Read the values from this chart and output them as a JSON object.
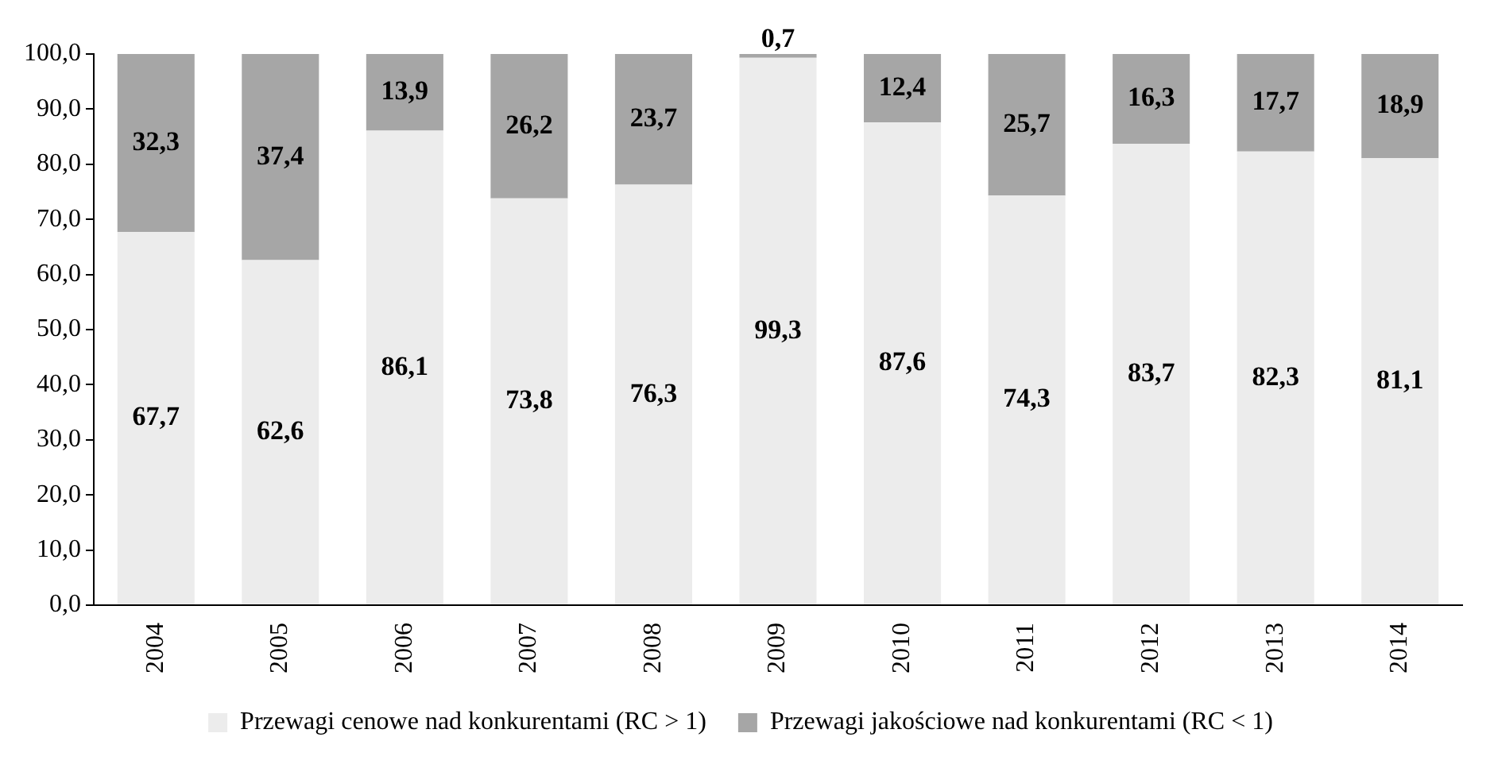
{
  "chart_data": {
    "type": "bar",
    "stacked": true,
    "categories": [
      "2004",
      "2005",
      "2006",
      "2007",
      "2008",
      "2009",
      "2010",
      "2011",
      "2012",
      "2013",
      "2014"
    ],
    "series": [
      {
        "name": "Przewagi cenowe nad konkurentami (RC > 1)",
        "color": "#ececec",
        "values": [
          67.7,
          62.6,
          86.1,
          73.8,
          76.3,
          99.3,
          87.6,
          74.3,
          83.7,
          82.3,
          81.1
        ],
        "value_labels": [
          "67,7",
          "62,6",
          "86,1",
          "73,8",
          "76,3",
          "99,3",
          "87,6",
          "74,3",
          "83,7",
          "82,3",
          "81,1"
        ]
      },
      {
        "name": "Przewagi jakościowe nad konkurentami (RC < 1)",
        "color": "#a6a6a6",
        "values": [
          32.3,
          37.4,
          13.9,
          26.2,
          23.7,
          0.7,
          12.4,
          25.7,
          16.3,
          17.7,
          18.9
        ],
        "value_labels": [
          "32,3",
          "37,4",
          "13,9",
          "26,2",
          "23,7",
          "0,7",
          "12,4",
          "25,7",
          "16,3",
          "17,7",
          "18,9"
        ]
      }
    ],
    "ylim": [
      0,
      100
    ],
    "yticks": [
      {
        "value": 0,
        "label": "0,0"
      },
      {
        "value": 10,
        "label": "10,0"
      },
      {
        "value": 20,
        "label": "20,0"
      },
      {
        "value": 30,
        "label": "30,0"
      },
      {
        "value": 40,
        "label": "40,0"
      },
      {
        "value": 50,
        "label": "50,0"
      },
      {
        "value": 60,
        "label": "60,0"
      },
      {
        "value": 70,
        "label": "70,0"
      },
      {
        "value": 80,
        "label": "80,0"
      },
      {
        "value": 90,
        "label": "90,0"
      },
      {
        "value": 100,
        "label": "100,0"
      }
    ],
    "grid": false,
    "legend": "bottom"
  }
}
